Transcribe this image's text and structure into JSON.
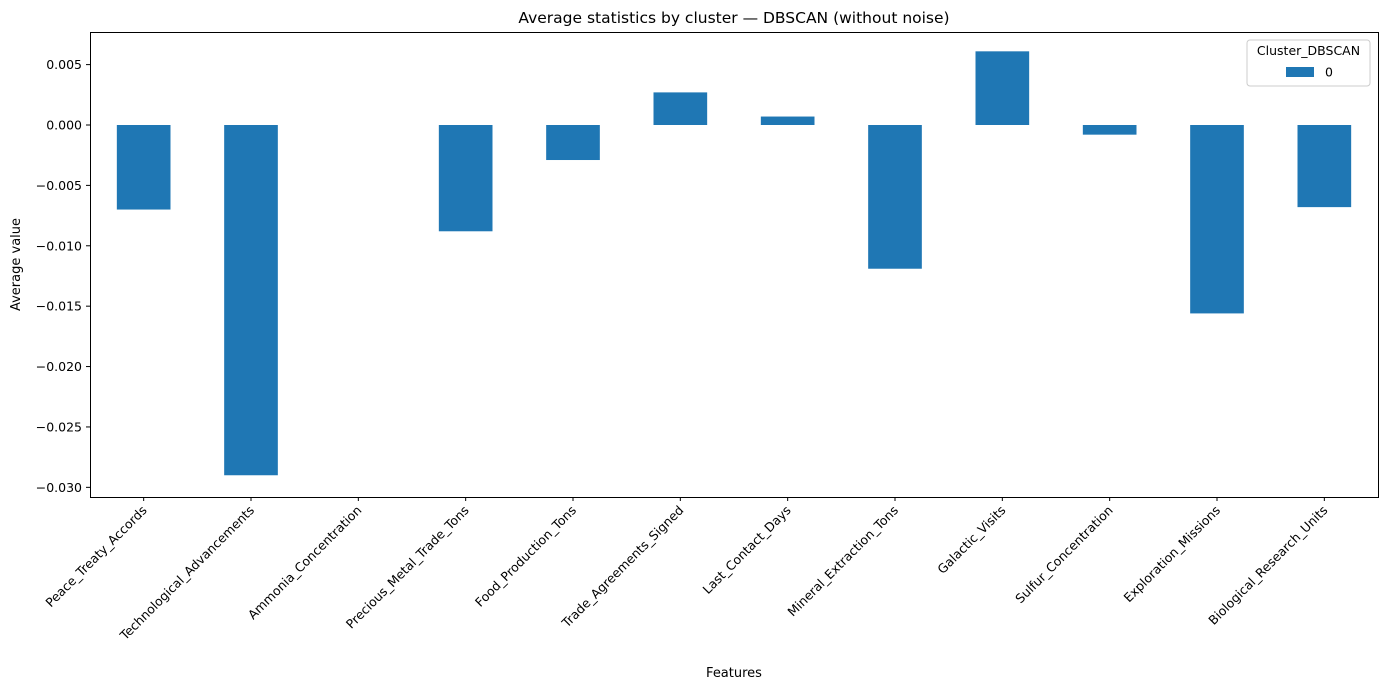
{
  "chart_data": {
    "type": "bar",
    "title": "Average statistics by cluster — DBSCAN (without noise)",
    "xlabel": "Features",
    "ylabel": "Average value",
    "categories": [
      "Peace_Treaty_Accords",
      "Technological_Advancements",
      "Ammonia_Concentration",
      "Precious_Metal_Trade_Tons",
      "Food_Production_Tons",
      "Trade_Agreements_Signed",
      "Last_Contact_Days",
      "Mineral_Extraction_Tons",
      "Galactic_Visits",
      "Sulfur_Concentration",
      "Exploration_Missions",
      "Biological_Research_Units"
    ],
    "series": [
      {
        "name": "0",
        "color": "#1f77b4",
        "values": [
          -0.007,
          -0.029,
          0.0,
          -0.0088,
          -0.0029,
          0.0027,
          0.0007,
          -0.0119,
          0.0061,
          -0.0008,
          -0.0156,
          -0.0068
        ]
      }
    ],
    "ylim": [
      -0.0308,
      0.0077
    ],
    "yticks": [
      0.005,
      0.0,
      -0.005,
      -0.01,
      -0.015,
      -0.02,
      -0.025,
      -0.03
    ],
    "ytick_labels": [
      "0.005",
      "0.000",
      "−0.005",
      "−0.010",
      "−0.015",
      "−0.020",
      "−0.025",
      "−0.030"
    ],
    "legend": {
      "title": "Cluster_DBSCAN",
      "placement": "top-right",
      "entries": [
        "0"
      ]
    },
    "grid": false
  }
}
